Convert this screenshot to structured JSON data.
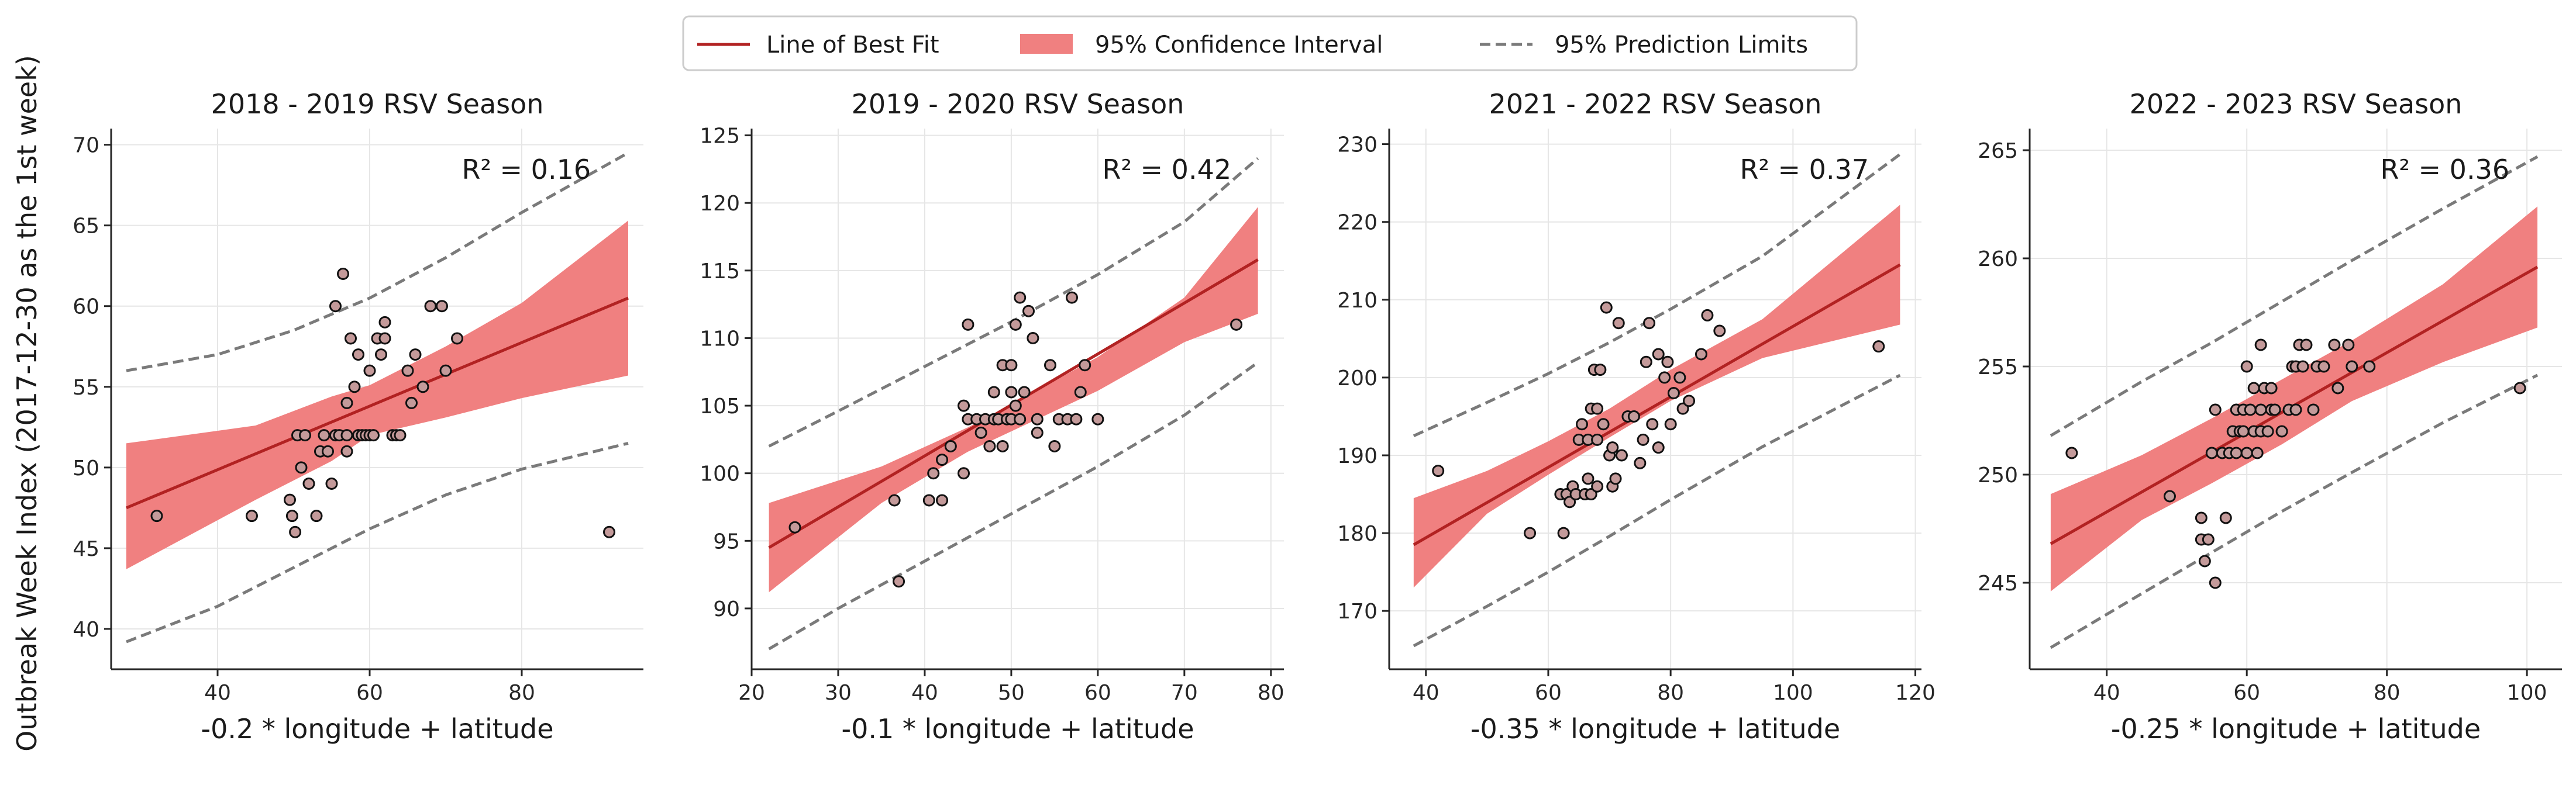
{
  "legend": {
    "items": [
      {
        "label": "Line of Best Fit",
        "kind": "line",
        "color": "#b22222"
      },
      {
        "label": "95% Confidence Interval",
        "kind": "patch",
        "color": "#f08080"
      },
      {
        "label": "95% Prediction Limits",
        "kind": "dashed",
        "color": "#7a7a7a"
      }
    ]
  },
  "y_axis_label": "Outbreak Week Index (2017-12-30 as the 1st week)",
  "colors": {
    "fit": "#b22222",
    "ci": "#f08080",
    "pi": "#7a7a7a",
    "point": "#c49a9a",
    "point_edge": "#111111"
  },
  "chart_data": [
    {
      "type": "scatter",
      "title": "2018 - 2019 RSV Season",
      "xlabel": "-0.2 * longitude + latitude",
      "ylabel": "Outbreak Week Index (2017-12-30 as the 1st week)",
      "annotation": "R² = 0.16",
      "xlim": [
        26,
        96
      ],
      "ylim": [
        37.5,
        71
      ],
      "xticks": [
        40,
        60,
        80
      ],
      "yticks": [
        40,
        45,
        50,
        55,
        60,
        65,
        70
      ],
      "grid": true,
      "points": [
        [
          32,
          47
        ],
        [
          44.5,
          47
        ],
        [
          49.5,
          48
        ],
        [
          49.8,
          47
        ],
        [
          50.2,
          46
        ],
        [
          50.5,
          52
        ],
        [
          51,
          50
        ],
        [
          51.5,
          52
        ],
        [
          52,
          49
        ],
        [
          53,
          47
        ],
        [
          53.5,
          51
        ],
        [
          54,
          52
        ],
        [
          54.5,
          51
        ],
        [
          55,
          49
        ],
        [
          55.5,
          52
        ],
        [
          55.5,
          60
        ],
        [
          56,
          52
        ],
        [
          56.5,
          62
        ],
        [
          57,
          51
        ],
        [
          57,
          52
        ],
        [
          57,
          54
        ],
        [
          57.5,
          58
        ],
        [
          58,
          55
        ],
        [
          58.5,
          52
        ],
        [
          58.5,
          57
        ],
        [
          59,
          52
        ],
        [
          59.5,
          52
        ],
        [
          60,
          52
        ],
        [
          60,
          56
        ],
        [
          60.5,
          52
        ],
        [
          61,
          58
        ],
        [
          61.5,
          57
        ],
        [
          62,
          58
        ],
        [
          62,
          59
        ],
        [
          63,
          52
        ],
        [
          63.5,
          52
        ],
        [
          64,
          52
        ],
        [
          65,
          56
        ],
        [
          65.5,
          54
        ],
        [
          66,
          57
        ],
        [
          67,
          55
        ],
        [
          68,
          60
        ],
        [
          69.5,
          60
        ],
        [
          70,
          56
        ],
        [
          71.5,
          58
        ],
        [
          91.5,
          46
        ]
      ],
      "fit": {
        "x1": 28,
        "y1": 47.5,
        "x2": 94,
        "y2": 60.5
      },
      "ci_upper": [
        [
          28,
          51.5
        ],
        [
          45,
          52.6
        ],
        [
          55,
          54.4
        ],
        [
          60,
          55.1
        ],
        [
          70,
          57.5
        ],
        [
          80,
          60.2
        ],
        [
          94,
          65.3
        ]
      ],
      "ci_lower": [
        [
          94,
          55.7
        ],
        [
          80,
          54.3
        ],
        [
          70,
          53.1
        ],
        [
          60,
          52.0
        ],
        [
          55,
          50.4
        ],
        [
          45,
          48.0
        ],
        [
          28,
          43.7
        ]
      ],
      "pi_upper": [
        [
          28,
          56.0
        ],
        [
          40,
          57.0
        ],
        [
          50,
          58.5
        ],
        [
          60,
          60.5
        ],
        [
          70,
          63.0
        ],
        [
          80,
          65.8
        ],
        [
          94,
          69.5
        ]
      ],
      "pi_lower": [
        [
          28,
          39.2
        ],
        [
          40,
          41.4
        ],
        [
          50,
          43.8
        ],
        [
          60,
          46.2
        ],
        [
          70,
          48.3
        ],
        [
          80,
          49.9
        ],
        [
          94,
          51.5
        ]
      ]
    },
    {
      "type": "scatter",
      "title": "2019 - 2020 RSV Season",
      "xlabel": "-0.1 * longitude + latitude",
      "ylabel": "",
      "annotation": "R² = 0.42",
      "xlim": [
        20,
        81.5
      ],
      "ylim": [
        85.5,
        125.5
      ],
      "xticks": [
        20,
        30,
        40,
        50,
        60,
        70,
        80
      ],
      "yticks": [
        90,
        95,
        100,
        105,
        110,
        115,
        120,
        125
      ],
      "grid": true,
      "points": [
        [
          25,
          96
        ],
        [
          36.5,
          98
        ],
        [
          37,
          92
        ],
        [
          40.5,
          98
        ],
        [
          41,
          100
        ],
        [
          42,
          98
        ],
        [
          42,
          101
        ],
        [
          43,
          102
        ],
        [
          44.5,
          105
        ],
        [
          44.5,
          100
        ],
        [
          45,
          104
        ],
        [
          45,
          111
        ],
        [
          46,
          104
        ],
        [
          46.5,
          103
        ],
        [
          47,
          104
        ],
        [
          47.5,
          102
        ],
        [
          48,
          104
        ],
        [
          48,
          106
        ],
        [
          48.5,
          104
        ],
        [
          49,
          108
        ],
        [
          49,
          102
        ],
        [
          49.5,
          104
        ],
        [
          50,
          104
        ],
        [
          50,
          108
        ],
        [
          50,
          106
        ],
        [
          50.5,
          105
        ],
        [
          50.5,
          111
        ],
        [
          51,
          104
        ],
        [
          51,
          113
        ],
        [
          51.5,
          106
        ],
        [
          52,
          112
        ],
        [
          52.5,
          110
        ],
        [
          53,
          104
        ],
        [
          53,
          103
        ],
        [
          54.5,
          108
        ],
        [
          55,
          102
        ],
        [
          55.5,
          104
        ],
        [
          56.5,
          104
        ],
        [
          57,
          113
        ],
        [
          57.5,
          104
        ],
        [
          58,
          106
        ],
        [
          58.5,
          108
        ],
        [
          60,
          104
        ],
        [
          76,
          111
        ]
      ],
      "fit": {
        "x1": 22,
        "y1": 94.5,
        "x2": 78.5,
        "y2": 115.8
      },
      "ci_upper": [
        [
          22,
          97.8
        ],
        [
          35,
          100.5
        ],
        [
          45,
          103.4
        ],
        [
          50,
          105.1
        ],
        [
          60,
          108.6
        ],
        [
          70,
          113.0
        ],
        [
          78.5,
          119.7
        ]
      ],
      "ci_lower": [
        [
          78.5,
          111.8
        ],
        [
          70,
          109.7
        ],
        [
          60,
          106.1
        ],
        [
          50,
          103.1
        ],
        [
          45,
          101.6
        ],
        [
          35,
          97.8
        ],
        [
          22,
          91.2
        ]
      ],
      "pi_upper": [
        [
          22,
          102.0
        ],
        [
          30,
          104.6
        ],
        [
          40,
          107.9
        ],
        [
          50,
          111.2
        ],
        [
          60,
          114.7
        ],
        [
          70,
          118.6
        ],
        [
          78.5,
          123.3
        ]
      ],
      "pi_lower": [
        [
          22,
          87.0
        ],
        [
          30,
          90.0
        ],
        [
          40,
          93.5
        ],
        [
          50,
          97.0
        ],
        [
          60,
          100.5
        ],
        [
          70,
          104.3
        ],
        [
          78.5,
          108.2
        ]
      ]
    },
    {
      "type": "scatter",
      "title": "2021 - 2022 RSV Season",
      "xlabel": "-0.35 * longitude + latitude",
      "ylabel": "",
      "annotation": "R² = 0.37",
      "xlim": [
        34,
        121
      ],
      "ylim": [
        162.5,
        232
      ],
      "xticks": [
        40,
        60,
        80,
        100,
        120
      ],
      "yticks": [
        170,
        180,
        190,
        200,
        210,
        220,
        230
      ],
      "grid": true,
      "points": [
        [
          42,
          188
        ],
        [
          57,
          180
        ],
        [
          62,
          185
        ],
        [
          62.5,
          180
        ],
        [
          63,
          185
        ],
        [
          63.5,
          184
        ],
        [
          64,
          186
        ],
        [
          64.5,
          185
        ],
        [
          65,
          192
        ],
        [
          65.5,
          194
        ],
        [
          66,
          185
        ],
        [
          66.5,
          187
        ],
        [
          66.5,
          192
        ],
        [
          67,
          185
        ],
        [
          67,
          196
        ],
        [
          67.5,
          201
        ],
        [
          68,
          186
        ],
        [
          68,
          192
        ],
        [
          68,
          196
        ],
        [
          68.5,
          201
        ],
        [
          69,
          194
        ],
        [
          69.5,
          209
        ],
        [
          70,
          190
        ],
        [
          70.5,
          186
        ],
        [
          70.5,
          191
        ],
        [
          71,
          187
        ],
        [
          71.5,
          207
        ],
        [
          72,
          190
        ],
        [
          73,
          195
        ],
        [
          74,
          195
        ],
        [
          75,
          189
        ],
        [
          75.5,
          192
        ],
        [
          76,
          202
        ],
        [
          76.5,
          207
        ],
        [
          77,
          194
        ],
        [
          78,
          191
        ],
        [
          78,
          203
        ],
        [
          79,
          200
        ],
        [
          79.5,
          202
        ],
        [
          80,
          194
        ],
        [
          80.5,
          198
        ],
        [
          81.5,
          200
        ],
        [
          82,
          196
        ],
        [
          83,
          197
        ],
        [
          85,
          203
        ],
        [
          86,
          208
        ],
        [
          88,
          206
        ],
        [
          114,
          204
        ]
      ],
      "fit": {
        "x1": 38,
        "y1": 178.5,
        "x2": 117.5,
        "y2": 214.5
      },
      "ci_upper": [
        [
          38,
          184.5
        ],
        [
          50,
          188.0
        ],
        [
          60,
          191.8
        ],
        [
          70,
          196.0
        ],
        [
          80,
          201.0
        ],
        [
          95,
          207.5
        ],
        [
          117.5,
          222.2
        ]
      ],
      "ci_lower": [
        [
          117.5,
          206.8
        ],
        [
          95,
          202.5
        ],
        [
          80,
          197.0
        ],
        [
          70,
          192.3
        ],
        [
          60,
          187.5
        ],
        [
          50,
          182.5
        ],
        [
          38,
          173.0
        ]
      ],
      "pi_upper": [
        [
          38,
          192.5
        ],
        [
          50,
          196.8
        ],
        [
          60,
          200.5
        ],
        [
          70,
          204.5
        ],
        [
          80,
          208.8
        ],
        [
          95,
          215.6
        ],
        [
          117.5,
          228.7
        ]
      ],
      "pi_lower": [
        [
          38,
          165.5
        ],
        [
          50,
          170.6
        ],
        [
          60,
          175.0
        ],
        [
          70,
          179.6
        ],
        [
          80,
          184.3
        ],
        [
          95,
          191.1
        ],
        [
          117.5,
          200.3
        ]
      ]
    },
    {
      "type": "scatter",
      "title": "2022 - 2023 RSV Season",
      "xlabel": "-0.25 * longitude + latitude",
      "ylabel": "",
      "annotation": "R² = 0.36",
      "xlim": [
        29,
        105
      ],
      "ylim": [
        241,
        266
      ],
      "xticks": [
        40,
        60,
        80,
        100
      ],
      "yticks": [
        245,
        250,
        255,
        260,
        265
      ],
      "grid": true,
      "points": [
        [
          35,
          251
        ],
        [
          49,
          249
        ],
        [
          53.5,
          247
        ],
        [
          53.5,
          248
        ],
        [
          54,
          246
        ],
        [
          54.5,
          247
        ],
        [
          55,
          251
        ],
        [
          55.5,
          245
        ],
        [
          55.5,
          253
        ],
        [
          56.5,
          251
        ],
        [
          57,
          248
        ],
        [
          57.5,
          251
        ],
        [
          58,
          252
        ],
        [
          58.5,
          251
        ],
        [
          58.5,
          253
        ],
        [
          59,
          252
        ],
        [
          59.5,
          252
        ],
        [
          59.5,
          253
        ],
        [
          60,
          251
        ],
        [
          60,
          255
        ],
        [
          60.5,
          253
        ],
        [
          61,
          252
        ],
        [
          61,
          254
        ],
        [
          61.5,
          251
        ],
        [
          62,
          252
        ],
        [
          62,
          253
        ],
        [
          62,
          256
        ],
        [
          62.5,
          254
        ],
        [
          63,
          252
        ],
        [
          63.5,
          254
        ],
        [
          63.5,
          253
        ],
        [
          64,
          253
        ],
        [
          65,
          252
        ],
        [
          66,
          253
        ],
        [
          66.5,
          255
        ],
        [
          67,
          255
        ],
        [
          67,
          253
        ],
        [
          67.5,
          256
        ],
        [
          68,
          255
        ],
        [
          68.5,
          256
        ],
        [
          69.5,
          253
        ],
        [
          70,
          255
        ],
        [
          71,
          255
        ],
        [
          72.5,
          256
        ],
        [
          73,
          254
        ],
        [
          74.5,
          256
        ],
        [
          75,
          255
        ],
        [
          77.5,
          255
        ],
        [
          99,
          254
        ]
      ],
      "fit": {
        "x1": 32,
        "y1": 246.8,
        "x2": 101.5,
        "y2": 259.6
      },
      "ci_upper": [
        [
          32,
          249.1
        ],
        [
          45,
          250.9
        ],
        [
          55,
          252.6
        ],
        [
          65,
          254.4
        ],
        [
          75,
          256.2
        ],
        [
          88,
          258.8
        ],
        [
          101.5,
          262.4
        ]
      ],
      "ci_lower": [
        [
          101.5,
          256.8
        ],
        [
          88,
          255.2
        ],
        [
          75,
          253.4
        ],
        [
          65,
          251.4
        ],
        [
          55,
          249.6
        ],
        [
          45,
          247.9
        ],
        [
          32,
          244.6
        ]
      ],
      "pi_upper": [
        [
          32,
          251.8
        ],
        [
          45,
          254.3
        ],
        [
          55,
          256.1
        ],
        [
          65,
          258.0
        ],
        [
          75,
          259.9
        ],
        [
          88,
          262.3
        ],
        [
          101.5,
          264.7
        ]
      ],
      "pi_lower": [
        [
          32,
          242.0
        ],
        [
          45,
          244.5
        ],
        [
          55,
          246.4
        ],
        [
          65,
          248.3
        ],
        [
          75,
          250.1
        ],
        [
          88,
          252.4
        ],
        [
          101.5,
          254.6
        ]
      ]
    }
  ]
}
